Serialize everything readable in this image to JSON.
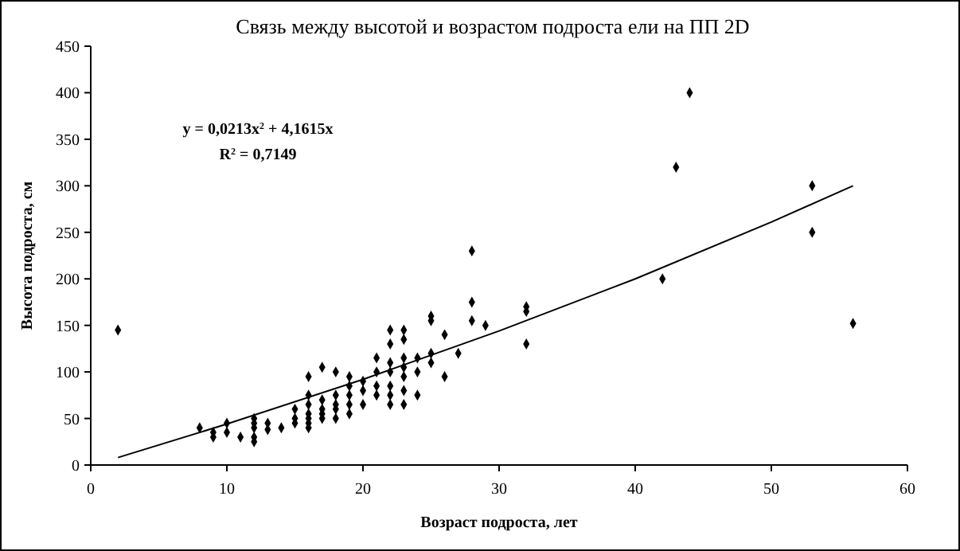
{
  "chart_data": {
    "type": "scatter",
    "title": "Связь между высотой и возрастом подроста ели на ПП 2D",
    "xlabel": "Возраст подроста, лет",
    "ylabel": "Высота подроста, см",
    "xlim": [
      0,
      60
    ],
    "xticks": [
      0,
      10,
      20,
      30,
      40,
      50,
      60
    ],
    "ylim": [
      0,
      450
    ],
    "yticks": [
      0,
      50,
      100,
      150,
      200,
      250,
      300,
      350,
      400,
      450
    ],
    "marker": "diamond",
    "annotations": [
      "y = 0,0213x$^{2}$ + 4,1615x",
      "R$^{2}$ = 0,7149"
    ],
    "series": [
      {
        "color": "#000000",
        "x": [
          2,
          8,
          9,
          9,
          10,
          10,
          11,
          12,
          12,
          12,
          12,
          12,
          13,
          13,
          14,
          15,
          15,
          15,
          16,
          16,
          16,
          16,
          16,
          16,
          16,
          17,
          17,
          17,
          17,
          17,
          18,
          18,
          18,
          18,
          18,
          19,
          19,
          19,
          19,
          19,
          20,
          20,
          20,
          21,
          21,
          21,
          21,
          22,
          22,
          22,
          22,
          22,
          22,
          22,
          23,
          23,
          23,
          23,
          23,
          23,
          23,
          24,
          24,
          24,
          25,
          25,
          25,
          25,
          26,
          26,
          27,
          28,
          28,
          28,
          29,
          32,
          32,
          32,
          42,
          43,
          44,
          53,
          53,
          56
        ],
        "values": [
          145,
          40,
          35,
          30,
          45,
          35,
          30,
          50,
          45,
          40,
          30,
          25,
          45,
          38,
          40,
          60,
          50,
          45,
          95,
          75,
          65,
          55,
          50,
          45,
          40,
          105,
          70,
          60,
          55,
          50,
          100,
          75,
          65,
          60,
          50,
          95,
          85,
          75,
          65,
          55,
          90,
          80,
          65,
          115,
          100,
          85,
          75,
          145,
          130,
          110,
          100,
          85,
          75,
          65,
          145,
          135,
          115,
          105,
          95,
          80,
          65,
          115,
          100,
          75,
          160,
          155,
          120,
          110,
          140,
          95,
          120,
          230,
          175,
          155,
          150,
          170,
          165,
          130,
          200,
          320,
          400,
          300,
          250,
          152
        ]
      },
      {
        "type": "line",
        "color": "#000000",
        "marker": "none",
        "line_style": "solid",
        "x": [
          2,
          10,
          20,
          30,
          40,
          50,
          56
        ],
        "values": [
          8,
          44,
          92,
          144,
          200,
          261,
          300
        ]
      }
    ]
  }
}
